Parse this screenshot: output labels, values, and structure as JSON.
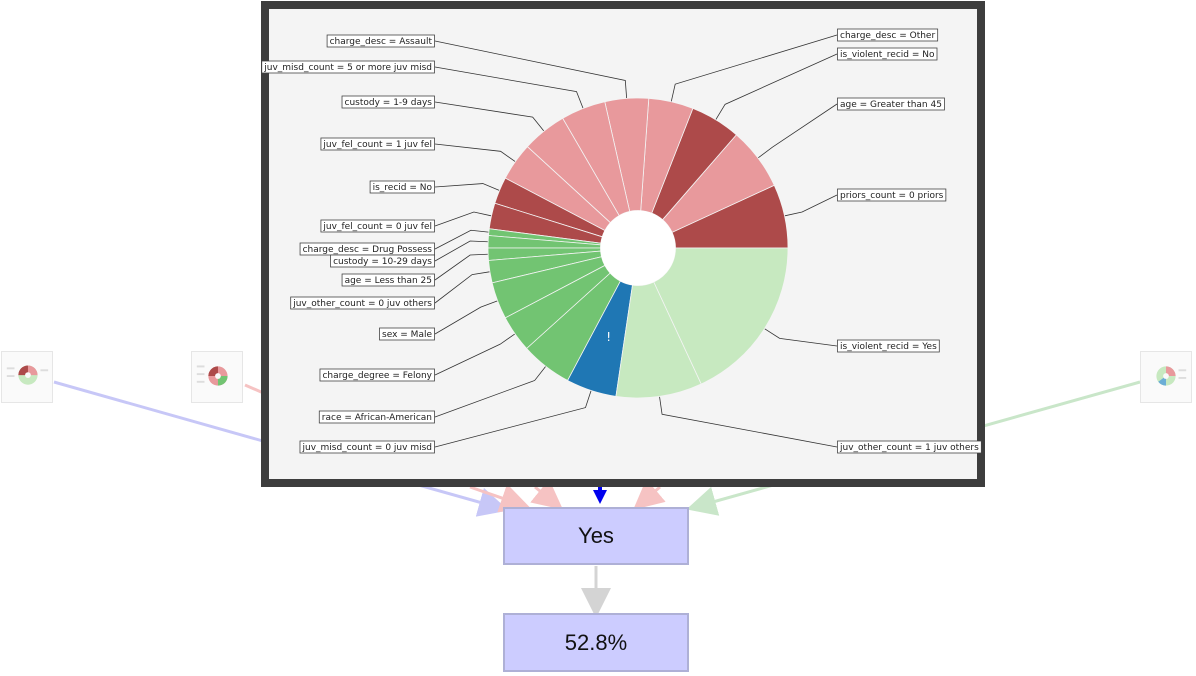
{
  "chart_data": {
    "type": "pie",
    "title": "",
    "inner_radius_fraction": 0.25,
    "warning_mark": "!",
    "segments": [
      {
        "label": "priors_count = 0 priors",
        "color": "#ad4a4a",
        "value": 5.7
      },
      {
        "label": "age = Greater than 45",
        "color": "#e8999c",
        "value": 5.6
      },
      {
        "label": "is_violent_recid = No",
        "color": "#ad4a4a",
        "value": 4.5
      },
      {
        "label": "charge_desc = Other",
        "color": "#e8999c",
        "value": 4.0
      },
      {
        "label": "charge_desc = Assault",
        "color": "#e8999c",
        "value": 3.9
      },
      {
        "label": "juv_misd_count = 5 or more juv misd",
        "color": "#e8999c",
        "value": 4.0
      },
      {
        "label": "custody = 1-9 days",
        "color": "#e8999c",
        "value": 4.0
      },
      {
        "label": "juv_fel_count = 1 juv fel",
        "color": "#e8999c",
        "value": 3.4
      },
      {
        "label": "is_recid = No",
        "color": "#ad4a4a",
        "value": 2.4
      },
      {
        "label": "juv_fel_count = 0 juv fel",
        "color": "#ad4a4a",
        "value": 2.3
      },
      {
        "label": "charge_desc = Drug Possess",
        "color": "#72c472",
        "value": 0.6
      },
      {
        "label": "custody = 10-29 days",
        "color": "#72c472",
        "value": 1.1
      },
      {
        "label": "age = Less than 25",
        "color": "#72c472",
        "value": 1.1
      },
      {
        "label": "juv_other_count = 0 juv others",
        "color": "#72c472",
        "value": 2.0
      },
      {
        "label": "sex = Male",
        "color": "#72c472",
        "value": 3.3
      },
      {
        "label": "charge_degree = Felony",
        "color": "#72c472",
        "value": 3.3
      },
      {
        "label": "race = African-American",
        "color": "#72c472",
        "value": 4.6
      },
      {
        "label": "juv_misd_count = 0 juv misd",
        "color": "#1f77b4",
        "value": 4.5
      },
      {
        "label": "juv_other_count = 1 juv others",
        "color": "#c7e9c0",
        "value": 7.7
      },
      {
        "label": "is_violent_recid = Yes",
        "color": "#c7e9c0",
        "value": 15.0
      }
    ]
  },
  "nodes": {
    "prediction": "Yes",
    "probability": "52.8%"
  }
}
